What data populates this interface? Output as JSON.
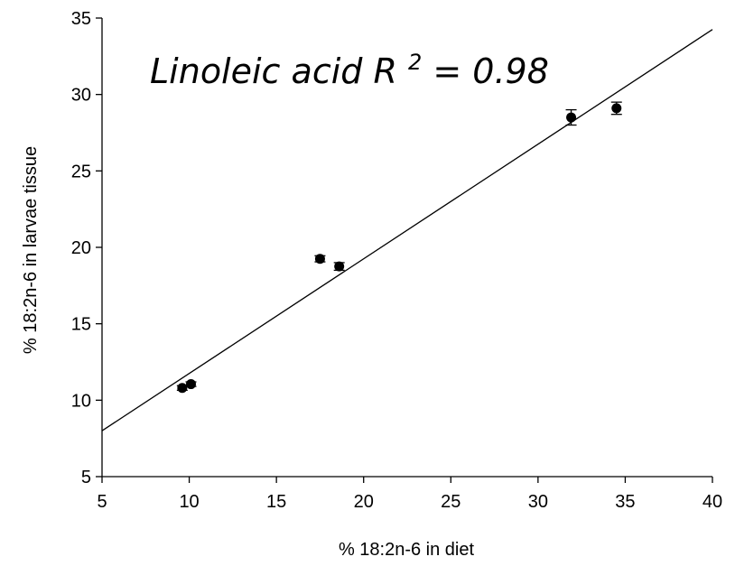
{
  "chart_data": {
    "type": "scatter",
    "title": "",
    "xlabel": "% 18:2n-6 in diet",
    "ylabel": "% 18:2n-6 in larvae tissue",
    "xlim": [
      5,
      40
    ],
    "ylim": [
      5,
      35
    ],
    "xticks": [
      5,
      10,
      15,
      20,
      25,
      30,
      35,
      40
    ],
    "yticks": [
      5,
      10,
      15,
      20,
      25,
      30,
      35
    ],
    "grid": false,
    "legend": "none",
    "colors": {
      "points": "#000000",
      "line": "#000000",
      "axes": "#000000"
    },
    "points": [
      {
        "x": 9.6,
        "y": 10.8,
        "err": 0.15
      },
      {
        "x": 10.1,
        "y": 11.05,
        "err": 0.15
      },
      {
        "x": 17.5,
        "y": 19.25,
        "err": 0.2
      },
      {
        "x": 18.6,
        "y": 18.75,
        "err": 0.25
      },
      {
        "x": 31.9,
        "y": 28.5,
        "err": 0.5
      },
      {
        "x": 34.5,
        "y": 29.1,
        "err": 0.4
      }
    ],
    "trendline": {
      "x_start": 5,
      "y_start": 8.0,
      "x_end": 40,
      "y_end": 34.25
    },
    "annotation": {
      "text_main": "Linoleic acid R",
      "superscript": "2",
      "text_tail": "= 0.98"
    }
  }
}
